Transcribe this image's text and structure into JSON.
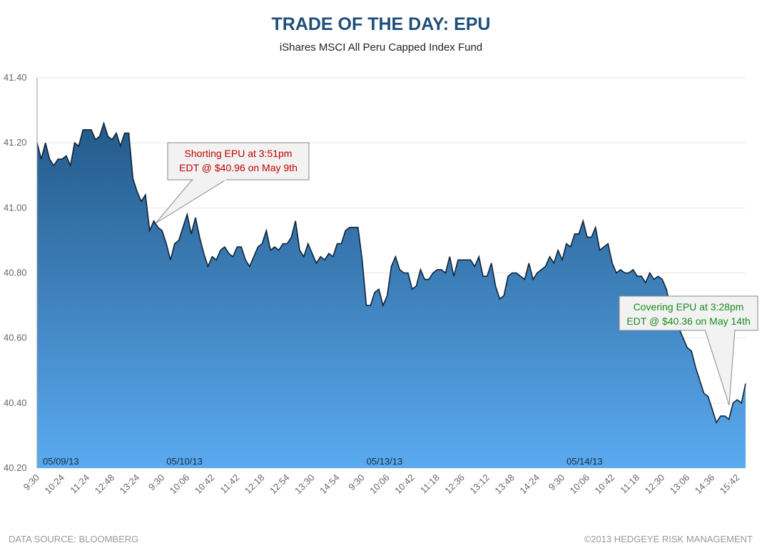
{
  "chart_data": {
    "type": "area",
    "title": "TRADE OF THE DAY: EPU",
    "subtitle": "iShares MSCI All Peru Capped Index Fund",
    "source": "DATA SOURCE: BLOOMBERG",
    "copyright": "©2013 HEDGEYE RISK MANAGEMENT",
    "dates": [
      "05/09/13",
      "05/10/13",
      "05/13/13",
      "05/14/13"
    ],
    "categories": [
      "9:30",
      null,
      null,
      null,
      null,
      null,
      "10:24",
      null,
      null,
      null,
      null,
      null,
      "11:24",
      null,
      null,
      null,
      null,
      null,
      "12:48",
      null,
      null,
      null,
      null,
      null,
      "13:24",
      null,
      null,
      null,
      null,
      null,
      "9:30",
      null,
      null,
      null,
      null,
      null,
      "10:06",
      null,
      null,
      null,
      null,
      null,
      "10:42",
      null,
      null,
      null,
      null,
      null,
      "11:42",
      null,
      null,
      null,
      null,
      null,
      "12:18",
      null,
      null,
      null,
      null,
      null,
      "12:54",
      null,
      null,
      null,
      null,
      null,
      "13:30",
      null,
      null,
      null,
      null,
      null,
      "14:54",
      null,
      null,
      null,
      null,
      null,
      "9:30",
      null,
      null,
      null,
      null,
      null,
      "10:06",
      null,
      null,
      null,
      null,
      null,
      "10:42",
      null,
      null,
      null,
      null,
      null,
      "11:18",
      null,
      null,
      null,
      null,
      null,
      "12:36",
      null,
      null,
      null,
      null,
      null,
      "13:12",
      null,
      null,
      null,
      null,
      null,
      "13:48",
      null,
      null,
      null,
      null,
      null,
      "14:24",
      null,
      null,
      null,
      null,
      null,
      "9:30",
      null,
      null,
      null,
      null,
      null,
      "10:06",
      null,
      null,
      null,
      null,
      null,
      "10:42",
      null,
      null,
      null,
      null,
      null,
      "11:18",
      null,
      null,
      null,
      null,
      null,
      "12:30",
      null,
      null,
      null,
      null,
      null,
      "13:06",
      null,
      null,
      null,
      null,
      null,
      "14:36",
      null,
      null,
      null,
      null,
      null,
      "15:42",
      null,
      null
    ],
    "series": [
      {
        "color": "#0f2236",
        "values": [
          41.2,
          41.15,
          41.2,
          41.15,
          41.13,
          41.15,
          41.15,
          41.16,
          41.13,
          41.2,
          41.19,
          41.24,
          41.24,
          41.24,
          41.21,
          41.22,
          41.26,
          41.22,
          41.21,
          41.23,
          41.19,
          41.23,
          41.23,
          41.09,
          41.05,
          41.02,
          41.04,
          40.93,
          40.96,
          40.94,
          40.93,
          40.89,
          40.84,
          40.89,
          40.9,
          40.94,
          40.98,
          40.92,
          40.97,
          40.91,
          40.86,
          40.82,
          40.85,
          40.84,
          40.87,
          40.88,
          40.86,
          40.85,
          40.88,
          40.88,
          40.84,
          40.82,
          40.85,
          40.88,
          40.89,
          40.93,
          40.87,
          40.88,
          40.87,
          40.89,
          40.89,
          40.91,
          40.96,
          40.87,
          40.85,
          40.89,
          40.86,
          40.83,
          40.85,
          40.84,
          40.86,
          40.85,
          40.89,
          40.89,
          40.93,
          40.94,
          40.94,
          40.94,
          40.84,
          40.7,
          40.7,
          40.74,
          40.75,
          40.7,
          40.73,
          40.82,
          40.85,
          40.81,
          40.8,
          40.8,
          40.75,
          40.76,
          40.81,
          40.78,
          40.78,
          40.8,
          40.81,
          40.81,
          40.8,
          40.85,
          40.79,
          40.84,
          40.84,
          40.84,
          40.84,
          40.82,
          40.85,
          40.79,
          40.79,
          40.83,
          40.76,
          40.72,
          40.73,
          40.79,
          40.8,
          40.8,
          40.79,
          40.78,
          40.83,
          40.78,
          40.8,
          40.81,
          40.82,
          40.85,
          40.83,
          40.87,
          40.84,
          40.89,
          40.88,
          40.92,
          40.92,
          40.96,
          40.91,
          40.91,
          40.94,
          40.87,
          40.88,
          40.89,
          40.83,
          40.8,
          40.81,
          40.8,
          40.8,
          40.81,
          40.79,
          40.79,
          40.77,
          40.8,
          40.78,
          40.79,
          40.78,
          40.75,
          40.69,
          40.65,
          40.63,
          40.6,
          40.57,
          40.56,
          40.51,
          40.47,
          40.43,
          40.42,
          40.38,
          40.34,
          40.36,
          40.36,
          40.35,
          40.4,
          40.41,
          40.4,
          40.46
        ]
      }
    ],
    "ylim": [
      40.2,
      41.4
    ],
    "yticks": [
      {
        "value": 40.2,
        "label": "40.20"
      },
      {
        "value": 40.4,
        "label": "40.40"
      },
      {
        "value": 40.6,
        "label": "40.60"
      },
      {
        "value": 40.8,
        "label": "40.80"
      },
      {
        "value": 41.0,
        "label": "41.00"
      },
      {
        "value": 41.2,
        "label": "41.20"
      },
      {
        "value": 41.4,
        "label": "41.40"
      }
    ],
    "grid": true,
    "annotations": [
      {
        "lines": [
          "Shorting EPU at 3:51pm",
          "EDT @ $40.96 on May 9th"
        ],
        "color": "#c00000"
      },
      {
        "lines": [
          "Covering EPU at 3:28pm",
          "EDT @ $40.36 on May 14th"
        ],
        "color": "#1a8a1a"
      }
    ]
  }
}
